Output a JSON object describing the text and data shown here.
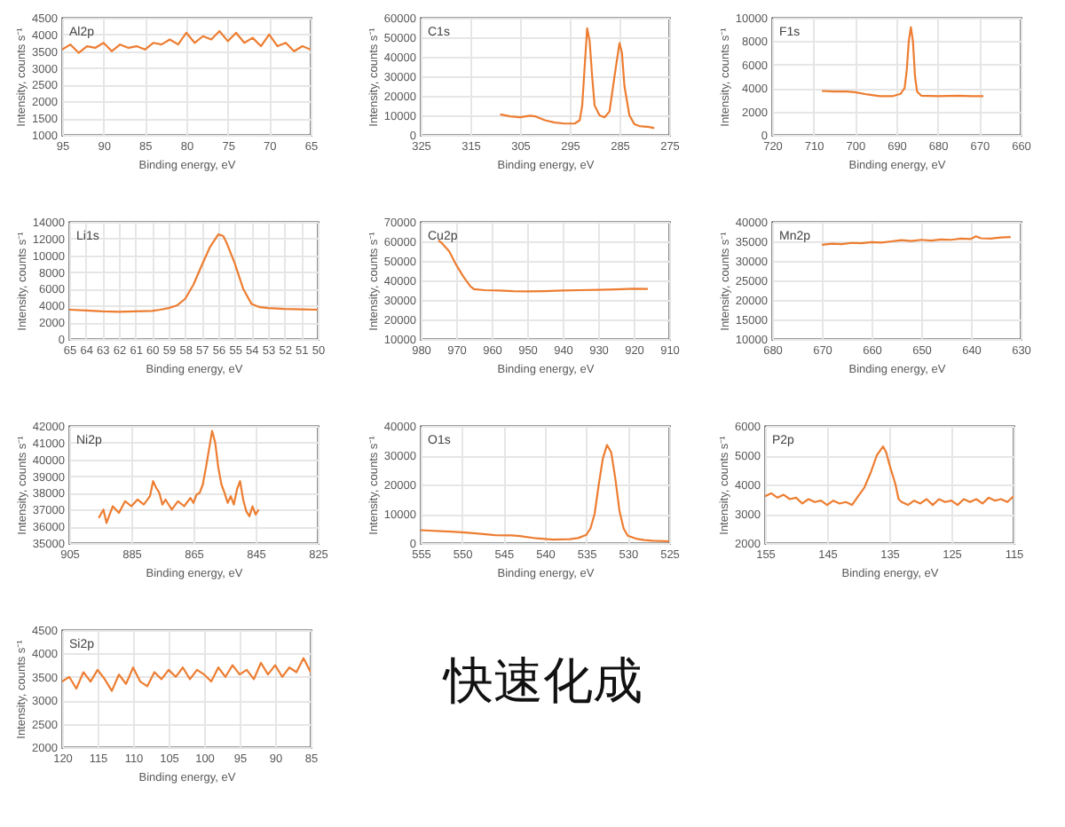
{
  "chart_data": [
    {
      "type": "line",
      "title": "Al2p",
      "xlabel": "Binding energy, eV",
      "ylabel": "Intensity, counts s⁻¹",
      "color": "#ed7d31",
      "grid": true,
      "xlim": [
        95,
        65
      ],
      "xticks": [
        95,
        90,
        85,
        80,
        75,
        70,
        65
      ],
      "ylim": [
        1000,
        4500
      ],
      "yticks": [
        1000,
        1500,
        2000,
        2500,
        3000,
        3500,
        4000,
        4500
      ],
      "x": [
        95,
        94,
        93,
        92,
        91,
        90,
        89,
        88,
        87,
        86,
        85,
        84,
        83,
        82,
        81,
        80,
        79,
        78,
        77,
        76,
        75,
        74,
        73,
        72,
        71,
        70,
        69,
        68,
        67,
        66,
        65
      ],
      "values": [
        3550,
        3700,
        3450,
        3650,
        3600,
        3750,
        3500,
        3700,
        3600,
        3650,
        3550,
        3750,
        3700,
        3850,
        3700,
        4050,
        3750,
        3950,
        3850,
        4100,
        3800,
        4050,
        3750,
        3900,
        3650,
        4000,
        3650,
        3750,
        3500,
        3650,
        3550
      ]
    },
    {
      "type": "line",
      "title": "C1s",
      "xlabel": "Binding energy, eV",
      "ylabel": "Intensity, counts s⁻¹",
      "color": "#ed7d31",
      "grid": true,
      "xlim": [
        325,
        275
      ],
      "xticks": [
        325,
        315,
        305,
        295,
        285,
        275
      ],
      "ylim": [
        0,
        60000
      ],
      "yticks": [
        0,
        10000,
        20000,
        30000,
        40000,
        50000,
        60000
      ],
      "x": [
        309,
        307,
        305,
        303,
        302,
        300,
        298,
        296,
        294,
        293,
        292.5,
        292,
        291.5,
        291,
        290.5,
        290,
        289,
        288,
        287,
        286,
        285,
        284.5,
        284,
        283,
        282,
        281,
        279,
        278
      ],
      "values": [
        10500,
        9500,
        9000,
        9800,
        9500,
        7500,
        6300,
        5800,
        5800,
        7500,
        15000,
        35000,
        54600,
        48000,
        30000,
        15000,
        10000,
        9000,
        12000,
        30000,
        47000,
        42000,
        25000,
        10000,
        5500,
        4500,
        4000,
        3500
      ]
    },
    {
      "type": "line",
      "title": "F1s",
      "xlabel": "Binding energy, eV",
      "ylabel": "Intensity, counts s⁻¹",
      "color": "#ed7d31",
      "grid": true,
      "xlim": [
        720,
        660
      ],
      "xticks": [
        720,
        710,
        700,
        690,
        680,
        670,
        660
      ],
      "ylim": [
        0,
        10000
      ],
      "yticks": [
        0,
        2000,
        4000,
        6000,
        8000,
        10000
      ],
      "x": [
        708,
        705,
        702,
        700,
        697,
        694,
        691,
        689,
        688,
        687.5,
        687,
        686.5,
        686,
        685.5,
        685,
        684,
        680,
        675,
        672,
        669
      ],
      "values": [
        3750,
        3700,
        3700,
        3650,
        3450,
        3300,
        3300,
        3500,
        4000,
        5500,
        8000,
        9200,
        8000,
        5000,
        3700,
        3350,
        3300,
        3350,
        3300,
        3300
      ]
    },
    {
      "type": "line",
      "title": "Li1s",
      "xlabel": "Binding energy, eV",
      "ylabel": "Intensity, counts s⁻¹",
      "color": "#ed7d31",
      "grid": true,
      "xlim": [
        65,
        50
      ],
      "xticks": [
        65,
        64,
        63,
        62,
        61,
        60,
        59,
        58,
        57,
        56,
        55,
        54,
        53,
        52,
        51,
        50
      ],
      "ylim": [
        0,
        14000
      ],
      "yticks": [
        0,
        2000,
        4000,
        6000,
        8000,
        10000,
        12000,
        14000
      ],
      "x": [
        65,
        64,
        63,
        62,
        61,
        60,
        59.5,
        59,
        58.5,
        58,
        57.5,
        57,
        56.5,
        56,
        55.7,
        55.5,
        55,
        54.5,
        54,
        53.5,
        53,
        52,
        51,
        50
      ],
      "values": [
        3500,
        3400,
        3300,
        3250,
        3300,
        3350,
        3500,
        3700,
        4000,
        4800,
        6500,
        8800,
        11000,
        12500,
        12300,
        11500,
        9000,
        6000,
        4200,
        3800,
        3700,
        3600,
        3550,
        3500
      ]
    },
    {
      "type": "line",
      "title": "Cu2p",
      "xlabel": "Binding energy, eV",
      "ylabel": "Intensity, counts s⁻¹",
      "color": "#ed7d31",
      "grid": true,
      "xlim": [
        980,
        910
      ],
      "xticks": [
        980,
        970,
        960,
        950,
        940,
        930,
        920,
        910
      ],
      "ylim": [
        10000,
        70000
      ],
      "yticks": [
        10000,
        20000,
        30000,
        40000,
        50000,
        60000,
        70000
      ],
      "x": [
        975,
        974,
        972,
        970,
        968,
        966,
        965,
        962,
        958,
        954,
        950,
        945,
        940,
        935,
        930,
        925,
        920,
        916
      ],
      "values": [
        60500,
        59000,
        55000,
        48000,
        42000,
        37000,
        35500,
        35000,
        34800,
        34500,
        34400,
        34500,
        34800,
        35000,
        35200,
        35400,
        35700,
        35600
      ]
    },
    {
      "type": "line",
      "title": "Mn2p",
      "xlabel": "Binding energy, eV",
      "ylabel": "Intensity, counts s⁻¹",
      "color": "#ed7d31",
      "grid": true,
      "xlim": [
        680,
        630
      ],
      "xticks": [
        680,
        670,
        660,
        650,
        640,
        630
      ],
      "ylim": [
        10000,
        40000
      ],
      "yticks": [
        10000,
        15000,
        20000,
        25000,
        30000,
        35000,
        40000
      ],
      "x": [
        670,
        668,
        666,
        664,
        662,
        660,
        658,
        656,
        654,
        652,
        650,
        648,
        646,
        644,
        642,
        640,
        639,
        638,
        636,
        634,
        632
      ],
      "values": [
        34100,
        34400,
        34300,
        34600,
        34500,
        34800,
        34700,
        35000,
        35300,
        35100,
        35400,
        35200,
        35500,
        35400,
        35700,
        35600,
        36300,
        35800,
        35700,
        36000,
        36100
      ]
    },
    {
      "type": "line",
      "title": "Ni2p",
      "xlabel": "Binding energy, eV",
      "ylabel": "Intensity, counts s⁻¹",
      "color": "#ed7d31",
      "grid": true,
      "xlim": [
        905,
        825
      ],
      "xticks": [
        905,
        885,
        865,
        845,
        825
      ],
      "ylim": [
        35000,
        42000
      ],
      "yticks": [
        35000,
        36000,
        37000,
        38000,
        39000,
        40000,
        41000,
        42000
      ],
      "x": [
        895.5,
        894,
        893,
        891,
        889,
        887,
        885,
        883,
        881,
        879,
        878,
        877,
        876,
        875,
        874,
        872,
        870,
        868,
        866,
        865,
        864,
        863,
        862,
        861,
        860,
        859,
        858,
        857,
        856,
        855,
        854,
        853,
        852,
        851,
        850,
        849,
        848,
        847,
        846,
        845,
        844
      ],
      "values": [
        36500,
        37000,
        36200,
        37200,
        36800,
        37500,
        37200,
        37600,
        37300,
        37800,
        38700,
        38300,
        38000,
        37300,
        37600,
        37000,
        37500,
        37200,
        37700,
        37400,
        37900,
        38000,
        38500,
        39500,
        40600,
        41700,
        41000,
        39500,
        38500,
        38000,
        37400,
        37800,
        37300,
        38200,
        38700,
        37600,
        36900,
        36600,
        37200,
        36700,
        37000
      ]
    },
    {
      "type": "line",
      "title": "O1s",
      "xlabel": "Binding energy, eV",
      "ylabel": "Intensity, counts s⁻¹",
      "color": "#ed7d31",
      "grid": true,
      "xlim": [
        555,
        525
      ],
      "xticks": [
        555,
        550,
        545,
        540,
        535,
        530,
        525
      ],
      "ylim": [
        0,
        40000
      ],
      "yticks": [
        0,
        10000,
        20000,
        30000,
        40000
      ],
      "x": [
        555,
        552,
        550,
        548,
        546,
        544,
        543,
        541,
        539,
        537,
        536,
        535,
        534.5,
        534,
        533.5,
        533,
        532.5,
        532,
        531.5,
        531,
        530.5,
        530,
        529,
        528,
        527,
        525
      ],
      "values": [
        4400,
        4000,
        3700,
        3200,
        2700,
        2600,
        2400,
        1600,
        1200,
        1300,
        1700,
        2800,
        5000,
        10000,
        20000,
        29000,
        33500,
        31000,
        22000,
        11000,
        5000,
        2500,
        1500,
        1000,
        800,
        600
      ]
    },
    {
      "type": "line",
      "title": "P2p",
      "xlabel": "Binding energy, eV",
      "ylabel": "Intensity, counts s⁻¹",
      "color": "#ed7d31",
      "grid": true,
      "xlim": [
        155,
        115
      ],
      "xticks": [
        155,
        145,
        135,
        125,
        115
      ],
      "ylim": [
        2000,
        6000
      ],
      "yticks": [
        2000,
        3000,
        4000,
        5000,
        6000
      ],
      "x": [
        155,
        154,
        153,
        152,
        151,
        150,
        149,
        148,
        147,
        146,
        145,
        144,
        143,
        142,
        141,
        140,
        139,
        138,
        137,
        136,
        135.5,
        135,
        134,
        133.5,
        133,
        132,
        131,
        130,
        129,
        128,
        127,
        126,
        125,
        124,
        123,
        122,
        121,
        120,
        119,
        118,
        117,
        116,
        115
      ],
      "values": [
        3600,
        3700,
        3550,
        3650,
        3500,
        3550,
        3350,
        3500,
        3400,
        3450,
        3300,
        3450,
        3350,
        3400,
        3300,
        3600,
        3900,
        4400,
        5000,
        5300,
        5100,
        4700,
        4000,
        3500,
        3400,
        3300,
        3450,
        3350,
        3500,
        3300,
        3500,
        3400,
        3450,
        3300,
        3500,
        3400,
        3500,
        3350,
        3550,
        3450,
        3500,
        3400,
        3600
      ]
    },
    {
      "type": "line",
      "title": "Si2p",
      "xlabel": "Binding energy, eV",
      "ylabel": "Intensity, counts s⁻¹",
      "color": "#ed7d31",
      "grid": true,
      "xlim": [
        120,
        85
      ],
      "xticks": [
        120,
        115,
        110,
        105,
        100,
        95,
        90,
        85
      ],
      "ylim": [
        2000,
        4500
      ],
      "yticks": [
        2000,
        2500,
        3000,
        3500,
        4000,
        4500
      ],
      "x": [
        120,
        119,
        118,
        117,
        116,
        115,
        114,
        113,
        112,
        111,
        110,
        109,
        108,
        107,
        106,
        105,
        104,
        103,
        102,
        101,
        100,
        99,
        98,
        97,
        96,
        95,
        94,
        93,
        92,
        91,
        90,
        89,
        88,
        87,
        86,
        85
      ],
      "values": [
        3400,
        3500,
        3250,
        3600,
        3400,
        3650,
        3450,
        3200,
        3550,
        3350,
        3700,
        3400,
        3300,
        3600,
        3450,
        3650,
        3500,
        3700,
        3450,
        3650,
        3550,
        3400,
        3700,
        3500,
        3750,
        3550,
        3650,
        3450,
        3800,
        3550,
        3750,
        3500,
        3700,
        3600,
        3900,
        3600
      ]
    },
    {
      "type": "other",
      "title": "快速化成"
    }
  ]
}
